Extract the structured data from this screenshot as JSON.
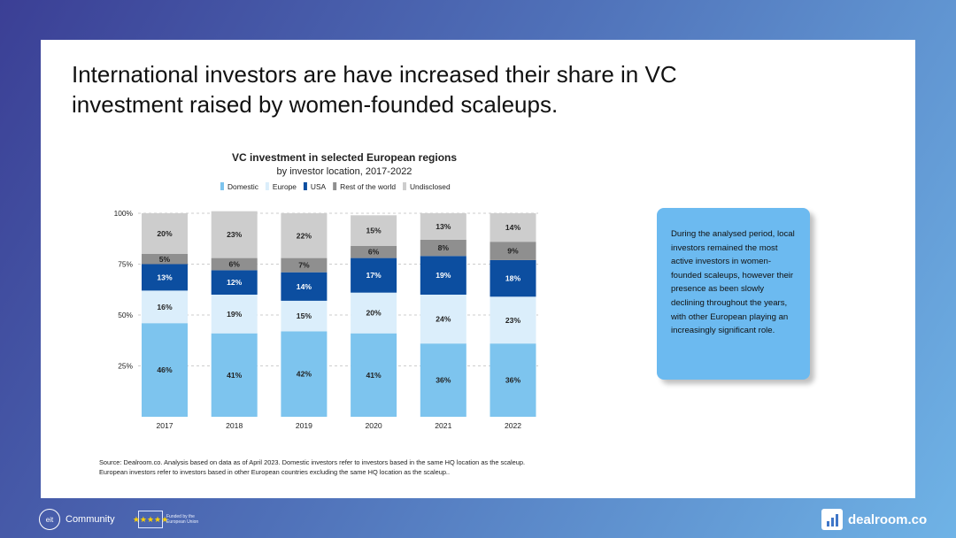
{
  "slide": {
    "title_line1": "International investors are have increased their share in VC",
    "title_line2": "investment raised by women-founded scaleups.",
    "note_text": "During the analysed period, local investors remained the most active investors in women-founded scaleups, however their presence as been slowly declining throughout the years, with other European playing an increasingly significant role.",
    "source_line1": "Source: Dealroom.co. Analysis based on data as of April 2023. Domestic investors refer to investors based in the same HQ location as the scaleup.",
    "source_line2": "European investors refer to investors based in other European countries excluding the same HQ location as the scaleup.."
  },
  "footer": {
    "eit_mark": "eit",
    "eit_label": "Community",
    "eu_text": "Funded by the European Union",
    "eu_stars": "★★★★★",
    "dealroom_label": "dealroom.co"
  },
  "colors": {
    "domestic": "#7dc4ee",
    "europe": "#dbeefb",
    "usa": "#0c4ea0",
    "rest": "#8f8f8f",
    "undisclosed": "#cdcdcd",
    "text": "#222222"
  },
  "chart_data": {
    "type": "bar",
    "stacked": true,
    "title": "VC investment in selected European regions",
    "subtitle": "by investor location, 2017-2022",
    "categories": [
      "2017",
      "2018",
      "2019",
      "2020",
      "2021",
      "2022"
    ],
    "yticks": [
      "25%",
      "50%",
      "75%",
      "100%"
    ],
    "ylim": [
      0,
      100
    ],
    "series": [
      {
        "name": "Domestic",
        "key": "domestic",
        "values": [
          46,
          41,
          42,
          41,
          36,
          36
        ]
      },
      {
        "name": "Europe",
        "key": "europe",
        "values": [
          16,
          19,
          15,
          20,
          24,
          23
        ]
      },
      {
        "name": "USA",
        "key": "usa",
        "values": [
          13,
          12,
          14,
          17,
          19,
          18
        ]
      },
      {
        "name": "Rest of the world",
        "key": "rest",
        "values": [
          5,
          6,
          7,
          6,
          8,
          9
        ]
      },
      {
        "name": "Undisclosed",
        "key": "undisclosed",
        "values": [
          20,
          23,
          22,
          15,
          13,
          14
        ]
      }
    ]
  }
}
